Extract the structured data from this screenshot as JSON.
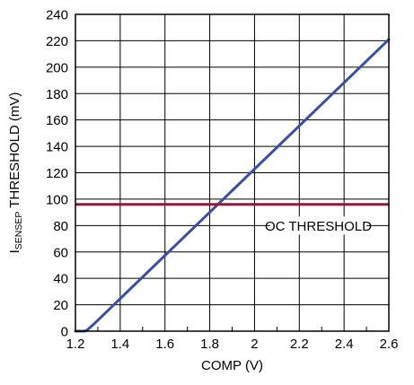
{
  "chart_data": {
    "type": "line",
    "xlabel": "COMP (V)",
    "ylabel_main": "I",
    "ylabel_sub": "SENSEP",
    "ylabel_rest": " THRESHOLD (mV)",
    "xlim": [
      1.2,
      2.6
    ],
    "ylim": [
      0,
      240
    ],
    "x_ticks": [
      1.2,
      1.4,
      1.6,
      1.8,
      2.0,
      2.2,
      2.4,
      2.6
    ],
    "x_tick_labels": [
      "1.2",
      "1.4",
      "1.6",
      "1.8",
      "2",
      "2.2",
      "2.4",
      "2.6"
    ],
    "y_ticks": [
      0,
      20,
      40,
      60,
      80,
      100,
      120,
      140,
      160,
      180,
      200,
      220,
      240
    ],
    "y_tick_labels": [
      "0",
      "20",
      "40",
      "60",
      "80",
      "100",
      "120",
      "140",
      "160",
      "180",
      "200",
      "220",
      "240"
    ],
    "x_minor_ticks": [
      1.3,
      1.5,
      1.7,
      1.9,
      2.1,
      2.3,
      2.5
    ],
    "grid": true,
    "series": [
      {
        "color": "#3a4fa0",
        "x": [
          1.2,
          1.24,
          1.25,
          1.28,
          2.6
        ],
        "y": [
          0,
          0,
          0.5,
          5,
          221
        ]
      }
    ],
    "threshold": {
      "value": 96,
      "label": "OC THRESHOLD",
      "color": "#8b1c3a"
    }
  }
}
